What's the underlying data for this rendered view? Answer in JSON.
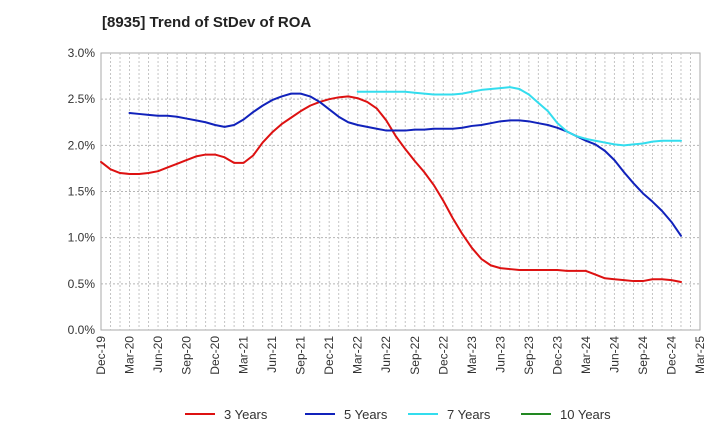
{
  "title": "[8935]  Trend of StDev of ROA",
  "chart_data": {
    "type": "line",
    "title": "[8935]  Trend of StDev of ROA",
    "xlabel": "",
    "ylabel": "",
    "x_range": [
      "2019-12",
      "2025-03"
    ],
    "ylim": [
      0,
      3.0
    ],
    "y_ticks": [
      "0.0%",
      "0.5%",
      "1.0%",
      "1.5%",
      "2.0%",
      "2.5%",
      "3.0%"
    ],
    "x_ticks": [
      "Dec-19",
      "Mar-20",
      "Jun-20",
      "Sep-20",
      "Dec-20",
      "Mar-21",
      "Jun-21",
      "Sep-21",
      "Dec-21",
      "Mar-22",
      "Jun-22",
      "Sep-22",
      "Dec-22",
      "Mar-23",
      "Jun-23",
      "Sep-23",
      "Dec-23",
      "Mar-24",
      "Jun-24",
      "Sep-24",
      "Dec-24",
      "Mar-25"
    ],
    "grid": true,
    "legend_position": "bottom",
    "series": [
      {
        "name": "3 Years",
        "color": "#dd1111",
        "points": [
          [
            "2019-12",
            1.82
          ],
          [
            "2020-01",
            1.74
          ],
          [
            "2020-02",
            1.7
          ],
          [
            "2020-03",
            1.69
          ],
          [
            "2020-04",
            1.69
          ],
          [
            "2020-05",
            1.7
          ],
          [
            "2020-06",
            1.72
          ],
          [
            "2020-07",
            1.76
          ],
          [
            "2020-08",
            1.8
          ],
          [
            "2020-09",
            1.84
          ],
          [
            "2020-10",
            1.88
          ],
          [
            "2020-11",
            1.9
          ],
          [
            "2020-12",
            1.9
          ],
          [
            "2021-01",
            1.87
          ],
          [
            "2021-02",
            1.81
          ],
          [
            "2021-03",
            1.81
          ],
          [
            "2021-04",
            1.89
          ],
          [
            "2021-05",
            2.03
          ],
          [
            "2021-06",
            2.14
          ],
          [
            "2021-07",
            2.23
          ],
          [
            "2021-08",
            2.3
          ],
          [
            "2021-09",
            2.37
          ],
          [
            "2021-10",
            2.43
          ],
          [
            "2021-11",
            2.47
          ],
          [
            "2021-12",
            2.5
          ],
          [
            "2022-01",
            2.52
          ],
          [
            "2022-02",
            2.53
          ],
          [
            "2022-03",
            2.51
          ],
          [
            "2022-04",
            2.47
          ],
          [
            "2022-05",
            2.4
          ],
          [
            "2022-06",
            2.27
          ],
          [
            "2022-07",
            2.1
          ],
          [
            "2022-08",
            1.96
          ],
          [
            "2022-09",
            1.83
          ],
          [
            "2022-10",
            1.71
          ],
          [
            "2022-11",
            1.57
          ],
          [
            "2022-12",
            1.4
          ],
          [
            "2023-01",
            1.21
          ],
          [
            "2023-02",
            1.04
          ],
          [
            "2023-03",
            0.89
          ],
          [
            "2023-04",
            0.77
          ],
          [
            "2023-05",
            0.7
          ],
          [
            "2023-06",
            0.67
          ],
          [
            "2023-07",
            0.66
          ],
          [
            "2023-08",
            0.65
          ],
          [
            "2023-09",
            0.65
          ],
          [
            "2023-10",
            0.65
          ],
          [
            "2023-11",
            0.65
          ],
          [
            "2023-12",
            0.65
          ],
          [
            "2024-01",
            0.64
          ],
          [
            "2024-02",
            0.64
          ],
          [
            "2024-03",
            0.64
          ],
          [
            "2024-04",
            0.6
          ],
          [
            "2024-05",
            0.56
          ],
          [
            "2024-06",
            0.55
          ],
          [
            "2024-07",
            0.54
          ],
          [
            "2024-08",
            0.53
          ],
          [
            "2024-09",
            0.53
          ],
          [
            "2024-10",
            0.55
          ],
          [
            "2024-11",
            0.55
          ],
          [
            "2024-12",
            0.54
          ],
          [
            "2025-01",
            0.52
          ]
        ]
      },
      {
        "name": "5 Years",
        "color": "#1122bb",
        "points": [
          [
            "2020-03",
            2.35
          ],
          [
            "2020-04",
            2.34
          ],
          [
            "2020-05",
            2.33
          ],
          [
            "2020-06",
            2.32
          ],
          [
            "2020-07",
            2.32
          ],
          [
            "2020-08",
            2.31
          ],
          [
            "2020-09",
            2.29
          ],
          [
            "2020-10",
            2.27
          ],
          [
            "2020-11",
            2.25
          ],
          [
            "2020-12",
            2.22
          ],
          [
            "2021-01",
            2.2
          ],
          [
            "2021-02",
            2.22
          ],
          [
            "2021-03",
            2.28
          ],
          [
            "2021-04",
            2.36
          ],
          [
            "2021-05",
            2.43
          ],
          [
            "2021-06",
            2.49
          ],
          [
            "2021-07",
            2.53
          ],
          [
            "2021-08",
            2.56
          ],
          [
            "2021-09",
            2.56
          ],
          [
            "2021-10",
            2.53
          ],
          [
            "2021-11",
            2.47
          ],
          [
            "2021-12",
            2.39
          ],
          [
            "2022-01",
            2.31
          ],
          [
            "2022-02",
            2.25
          ],
          [
            "2022-03",
            2.22
          ],
          [
            "2022-04",
            2.2
          ],
          [
            "2022-05",
            2.18
          ],
          [
            "2022-06",
            2.16
          ],
          [
            "2022-07",
            2.16
          ],
          [
            "2022-08",
            2.16
          ],
          [
            "2022-09",
            2.17
          ],
          [
            "2022-10",
            2.17
          ],
          [
            "2022-11",
            2.18
          ],
          [
            "2022-12",
            2.18
          ],
          [
            "2023-01",
            2.18
          ],
          [
            "2023-02",
            2.19
          ],
          [
            "2023-03",
            2.21
          ],
          [
            "2023-04",
            2.22
          ],
          [
            "2023-05",
            2.24
          ],
          [
            "2023-06",
            2.26
          ],
          [
            "2023-07",
            2.27
          ],
          [
            "2023-08",
            2.27
          ],
          [
            "2023-09",
            2.26
          ],
          [
            "2023-10",
            2.24
          ],
          [
            "2023-11",
            2.22
          ],
          [
            "2023-12",
            2.19
          ],
          [
            "2024-01",
            2.15
          ],
          [
            "2024-02",
            2.1
          ],
          [
            "2024-03",
            2.05
          ],
          [
            "2024-04",
            2.01
          ],
          [
            "2024-05",
            1.94
          ],
          [
            "2024-06",
            1.84
          ],
          [
            "2024-07",
            1.71
          ],
          [
            "2024-08",
            1.59
          ],
          [
            "2024-09",
            1.48
          ],
          [
            "2024-10",
            1.39
          ],
          [
            "2024-11",
            1.29
          ],
          [
            "2024-12",
            1.17
          ],
          [
            "2025-01",
            1.02
          ]
        ]
      },
      {
        "name": "7 Years",
        "color": "#33ddee",
        "points": [
          [
            "2022-03",
            2.58
          ],
          [
            "2022-04",
            2.58
          ],
          [
            "2022-05",
            2.58
          ],
          [
            "2022-06",
            2.58
          ],
          [
            "2022-07",
            2.58
          ],
          [
            "2022-08",
            2.58
          ],
          [
            "2022-09",
            2.57
          ],
          [
            "2022-10",
            2.56
          ],
          [
            "2022-11",
            2.55
          ],
          [
            "2022-12",
            2.55
          ],
          [
            "2023-01",
            2.55
          ],
          [
            "2023-02",
            2.56
          ],
          [
            "2023-03",
            2.58
          ],
          [
            "2023-04",
            2.6
          ],
          [
            "2023-05",
            2.61
          ],
          [
            "2023-06",
            2.62
          ],
          [
            "2023-07",
            2.63
          ],
          [
            "2023-08",
            2.61
          ],
          [
            "2023-09",
            2.55
          ],
          [
            "2023-10",
            2.46
          ],
          [
            "2023-11",
            2.37
          ],
          [
            "2023-12",
            2.24
          ],
          [
            "2024-01",
            2.15
          ],
          [
            "2024-02",
            2.1
          ],
          [
            "2024-03",
            2.07
          ],
          [
            "2024-04",
            2.05
          ],
          [
            "2024-05",
            2.03
          ],
          [
            "2024-06",
            2.01
          ],
          [
            "2024-07",
            2.0
          ],
          [
            "2024-08",
            2.01
          ],
          [
            "2024-09",
            2.02
          ],
          [
            "2024-10",
            2.04
          ],
          [
            "2024-11",
            2.05
          ],
          [
            "2024-12",
            2.05
          ],
          [
            "2025-01",
            2.05
          ]
        ]
      },
      {
        "name": "10 Years",
        "color": "#228822",
        "points": []
      }
    ]
  }
}
